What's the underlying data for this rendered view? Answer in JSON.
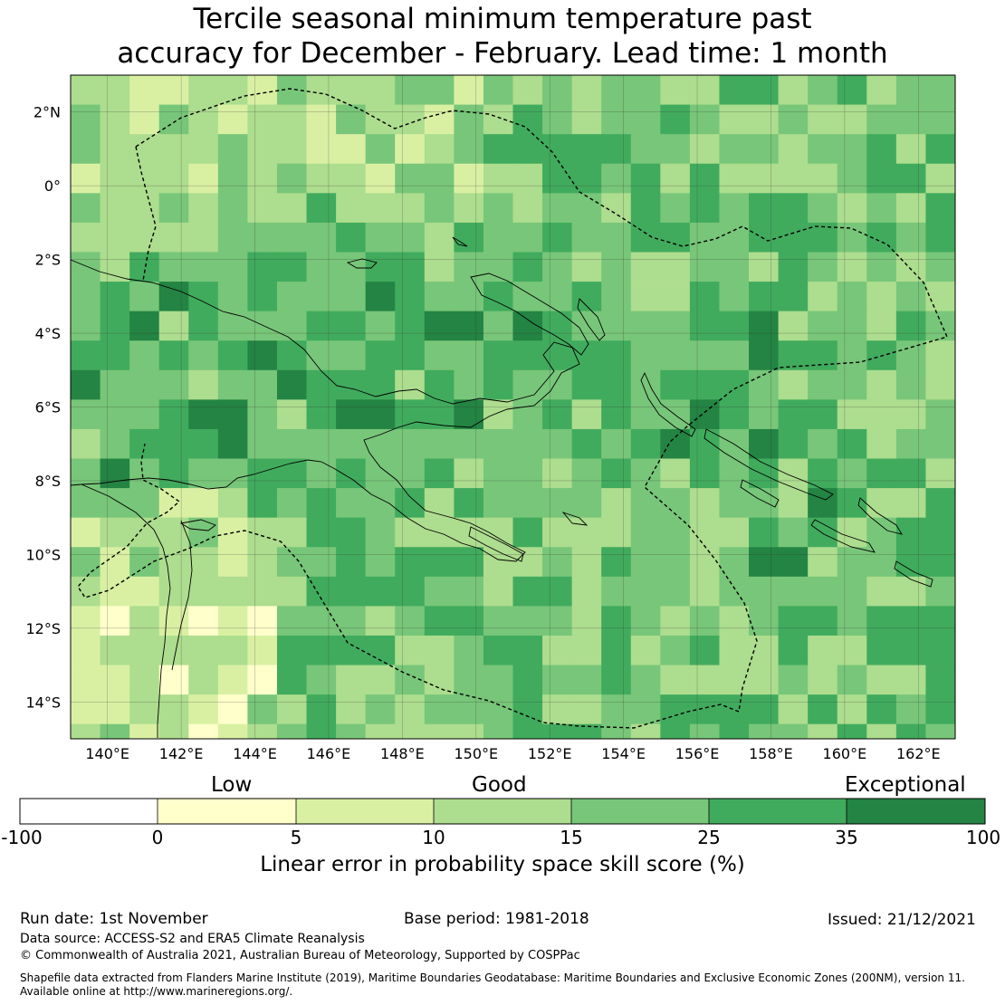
{
  "title": {
    "line1": "Tercile seasonal minimum temperature past",
    "line2": "accuracy for December - February. Lead time: 1 month"
  },
  "map": {
    "lon_labels": [
      "140°E",
      "142°E",
      "144°E",
      "146°E",
      "148°E",
      "150°E",
      "152°E",
      "154°E",
      "156°E",
      "158°E",
      "160°E",
      "162°E"
    ],
    "lat_labels": [
      "2°N",
      "0°",
      "2°S",
      "4°S",
      "6°S",
      "8°S",
      "10°S",
      "12°S",
      "14°S"
    ],
    "lon_range": [
      139,
      163
    ],
    "lat_range": [
      -15,
      3
    ]
  },
  "colorbar": {
    "category_labels": [
      "Low",
      "Good",
      "Exceptional"
    ],
    "tick_labels": [
      "-100",
      "0",
      "5",
      "10",
      "15",
      "25",
      "35",
      "100"
    ],
    "colors": [
      "#ffffff",
      "#ffffcc",
      "#d9f0a3",
      "#addd8e",
      "#78c679",
      "#41ab5d",
      "#238443"
    ],
    "title": "Linear error in probability space skill score (%)"
  },
  "footer": {
    "run_date": "Run date: 1st November",
    "base_period": "Base period: 1981-2018",
    "issued": "Issued: 21/12/2021",
    "data_source": "Data source: ACCESS-S2 and ERA5 Climate Reanalysis",
    "copyright": "© Commonwealth of Australia 2021, Australian Bureau of Meteorology, Supported by COSPPac",
    "shapefile_line1": "Shapefile data extracted from Flanders Marine Institute (2019), Maritime Boundaries Geodatabase: Maritime Boundaries and Exclusive Economic Zones (200NM), version 11.",
    "shapefile_line2": "Available online at http://www.marineregions.org/."
  }
}
